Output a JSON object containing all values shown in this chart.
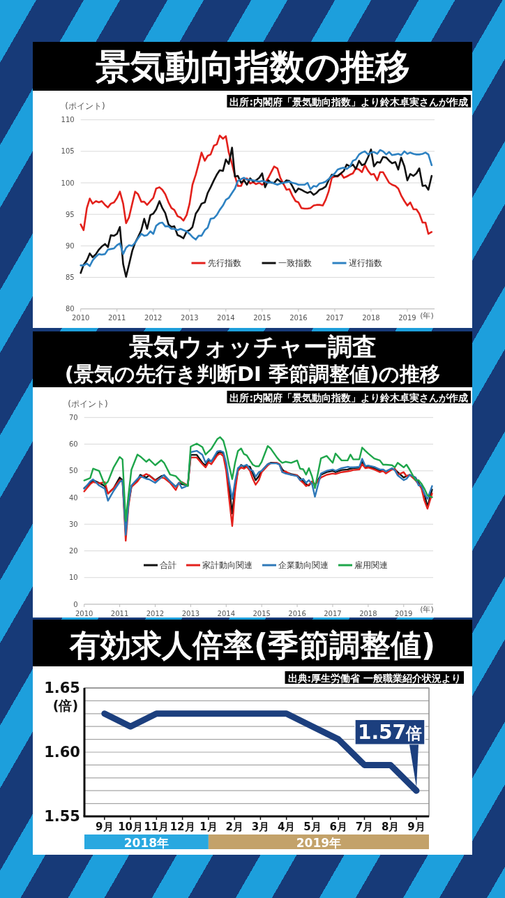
{
  "chart_data": [
    {
      "type": "line",
      "title": "景気動向指数の推移",
      "ylabel": "(ポイント)",
      "xlabel": "(年)",
      "annotations": [
        "出所:内閣府「景気動向指数」より鈴木卓実さんが作成"
      ],
      "xlim": [
        2010,
        2019.75
      ],
      "xticks": [
        2010,
        2011,
        2012,
        2013,
        2014,
        2015,
        2016,
        2017,
        2018,
        2019
      ],
      "ylim": [
        80,
        110
      ],
      "yticks": [
        80,
        85,
        90,
        95,
        100,
        105,
        110
      ],
      "grid": "y",
      "legend": "bottom",
      "x": [
        2010,
        2010.08,
        2010.17,
        2010.25,
        2010.33,
        2010.42,
        2010.5,
        2010.58,
        2010.67,
        2010.75,
        2010.83,
        2010.92,
        2011,
        2011.08,
        2011.17,
        2011.25,
        2011.33,
        2011.42,
        2011.5,
        2011.58,
        2011.67,
        2011.75,
        2011.83,
        2011.92,
        2012,
        2012.08,
        2012.17,
        2012.25,
        2012.33,
        2012.42,
        2012.5,
        2012.58,
        2012.67,
        2012.75,
        2012.83,
        2012.92,
        2013,
        2013.08,
        2013.17,
        2013.25,
        2013.33,
        2013.42,
        2013.5,
        2013.58,
        2013.67,
        2013.75,
        2013.83,
        2013.92,
        2014,
        2014.08,
        2014.17,
        2014.25,
        2014.33,
        2014.42,
        2014.5,
        2014.58,
        2014.67,
        2014.75,
        2014.83,
        2014.92,
        2015,
        2015.08,
        2015.17,
        2015.25,
        2015.33,
        2015.42,
        2015.5,
        2015.58,
        2015.67,
        2015.75,
        2015.83,
        2015.92,
        2016,
        2016.08,
        2016.17,
        2016.25,
        2016.33,
        2016.42,
        2016.5,
        2016.58,
        2016.67,
        2016.75,
        2016.83,
        2016.92,
        2017,
        2017.08,
        2017.17,
        2017.25,
        2017.33,
        2017.42,
        2017.5,
        2017.58,
        2017.67,
        2017.75,
        2017.83,
        2017.92,
        2018,
        2018.08,
        2018.17,
        2018.25,
        2018.33,
        2018.42,
        2018.5,
        2018.58,
        2018.67,
        2018.75,
        2018.83,
        2018.92,
        2019,
        2019.08,
        2019.17,
        2019.25,
        2019.33,
        2019.42,
        2019.5,
        2019.58,
        2019.67
      ],
      "series": [
        {
          "name": "先行指数",
          "color": "#e3211c",
          "values": [
            93.4,
            92.5,
            96.0,
            97.5,
            96.7,
            97.1,
            96.9,
            97.1,
            96.5,
            96.1,
            96.7,
            96.9,
            97.6,
            98.6,
            96.7,
            93.6,
            94.5,
            96.7,
            98.6,
            98.2,
            97.0,
            97.0,
            96.5,
            97.1,
            97.6,
            99.1,
            99.3,
            98.9,
            98.2,
            96.9,
            96.0,
            95.7,
            94.7,
            94.5,
            94.0,
            94.9,
            96.7,
            99.7,
            101.3,
            103.0,
            104.8,
            103.5,
            104.3,
            104.5,
            105.9,
            106.1,
            107.5,
            107.0,
            107.4,
            104.8,
            103.0,
            101.1,
            99.5,
            99.5,
            100.6,
            100.7,
            99.9,
            100.1,
            99.8,
            100.0,
            99.7,
            100.0,
            100.8,
            101.7,
            102.6,
            102.3,
            100.8,
            99.9,
            98.9,
            99.0,
            98.0,
            97.1,
            96.9,
            96.0,
            95.9,
            95.9,
            96.0,
            96.4,
            96.5,
            96.5,
            96.4,
            97.3,
            98.6,
            100.8,
            101.0,
            101.0,
            101.5,
            100.8,
            101.0,
            101.3,
            101.5,
            102.3,
            102.1,
            101.7,
            102.8,
            101.9,
            101.3,
            101.4,
            100.4,
            101.7,
            101.7,
            100.8,
            100.0,
            99.7,
            99.5,
            99.1,
            98.0,
            97.1,
            96.4,
            96.9,
            95.8,
            95.8,
            95.1,
            93.7,
            93.7,
            91.9,
            92.2
          ]
        },
        {
          "name": "一致指数",
          "color": "#111111",
          "values": [
            85.7,
            87.0,
            87.7,
            88.8,
            88.2,
            88.7,
            89.4,
            89.9,
            90.3,
            89.8,
            91.7,
            91.6,
            91.9,
            93.0,
            87.1,
            85.1,
            87.0,
            89.2,
            90.5,
            91.4,
            92.5,
            94.3,
            92.7,
            94.9,
            95.1,
            95.8,
            97.1,
            96.0,
            95.2,
            93.4,
            93.0,
            93.1,
            91.7,
            91.5,
            91.2,
            92.3,
            92.5,
            93.0,
            95.1,
            95.8,
            96.7,
            96.9,
            98.4,
            99.3,
            100.4,
            101.3,
            102.0,
            101.9,
            103.7,
            103.0,
            105.6,
            101.0,
            101.1,
            100.0,
            100.4,
            99.7,
            100.7,
            100.2,
            100.4,
            100.8,
            101.5,
            99.3,
            100.4,
            100.0,
            100.0,
            100.6,
            100.2,
            99.9,
            100.4,
            100.3,
            99.5,
            98.5,
            99.1,
            98.9,
            98.6,
            98.4,
            98.6,
            98.1,
            98.4,
            98.9,
            99.1,
            99.4,
            100.4,
            101.3,
            101.1,
            101.1,
            101.5,
            101.9,
            102.9,
            102.6,
            102.9,
            102.2,
            103.5,
            102.8,
            103.0,
            104.1,
            105.3,
            102.6,
            103.3,
            103.2,
            104.1,
            104.0,
            103.5,
            103.1,
            103.3,
            102.1,
            104.0,
            102.6,
            100.4,
            101.4,
            101.1,
            101.5,
            102.3,
            99.5,
            99.6,
            98.9,
            101.1
          ]
        },
        {
          "name": "遅行指数",
          "color": "#2e82c2",
          "values": [
            86.9,
            86.9,
            87.2,
            86.8,
            87.7,
            88.3,
            88.7,
            88.6,
            88.7,
            89.4,
            89.5,
            89.6,
            90.1,
            90.4,
            88.7,
            89.7,
            90.1,
            90.0,
            90.5,
            91.2,
            91.9,
            91.6,
            91.7,
            92.3,
            91.9,
            93.2,
            93.6,
            93.7,
            93.1,
            93.1,
            92.7,
            92.7,
            92.5,
            92.7,
            92.5,
            92.3,
            91.9,
            91.4,
            91.0,
            91.6,
            91.6,
            92.5,
            92.9,
            94.3,
            94.4,
            94.9,
            95.7,
            96.4,
            97.3,
            97.6,
            98.4,
            99.1,
            100.3,
            100.6,
            100.8,
            100.5,
            100.5,
            100.4,
            100.3,
            100.2,
            100.3,
            100.2,
            100.0,
            100.1,
            99.9,
            99.7,
            99.9,
            100.0,
            100.1,
            100.2,
            100.0,
            99.9,
            99.7,
            99.7,
            99.7,
            100.0,
            99.0,
            99.5,
            99.4,
            99.9,
            100.0,
            100.2,
            100.6,
            101.1,
            101.5,
            102.1,
            102.3,
            102.4,
            102.2,
            102.6,
            103.5,
            103.7,
            104.5,
            104.8,
            105.0,
            104.5,
            104.8,
            104.9,
            104.6,
            105.2,
            105.0,
            104.5,
            104.9,
            104.4,
            104.5,
            104.6,
            104.4,
            105.0,
            104.6,
            104.8,
            104.6,
            104.5,
            104.5,
            104.6,
            104.8,
            104.5,
            102.8
          ]
        }
      ]
    },
    {
      "type": "line",
      "title": "景気ウォッチャー調査",
      "subtitle": "(景気の先行き判断DI 季節調整値)の推移",
      "ylabel": "(ポイント)",
      "xlabel": "(年)",
      "annotations": [
        "出所:内閣府「景気動向指数」より鈴木卓実さんが作成"
      ],
      "xlim": [
        2010,
        2019.83
      ],
      "xticks": [
        2010,
        2011,
        2012,
        2013,
        2014,
        2015,
        2016,
        2017,
        2018,
        2019
      ],
      "ylim": [
        0,
        70
      ],
      "yticks": [
        0,
        10,
        20,
        30,
        40,
        50,
        60,
        70
      ],
      "grid": "y",
      "legend": "bottom",
      "x": [
        2010,
        2010.17,
        2010.25,
        2010.42,
        2010.58,
        2010.67,
        2010.83,
        2011,
        2011.08,
        2011.17,
        2011.25,
        2011.33,
        2011.5,
        2011.58,
        2011.75,
        2011.83,
        2012,
        2012.17,
        2012.25,
        2012.42,
        2012.58,
        2012.67,
        2012.75,
        2012.92,
        2013,
        2013.17,
        2013.33,
        2013.42,
        2013.5,
        2013.58,
        2013.75,
        2013.83,
        2013.92,
        2014,
        2014.08,
        2014.17,
        2014.25,
        2014.33,
        2014.42,
        2014.5,
        2014.58,
        2014.67,
        2014.75,
        2014.83,
        2014.92,
        2015,
        2015.17,
        2015.25,
        2015.42,
        2015.5,
        2015.58,
        2015.67,
        2015.83,
        2016,
        2016.08,
        2016.17,
        2016.25,
        2016.33,
        2016.42,
        2016.5,
        2016.67,
        2016.83,
        2017,
        2017.08,
        2017.25,
        2017.42,
        2017.5,
        2017.58,
        2017.75,
        2017.83,
        2017.92,
        2018,
        2018.17,
        2018.33,
        2018.42,
        2018.5,
        2018.67,
        2018.75,
        2018.83,
        2019,
        2019.08,
        2019.17,
        2019.33,
        2019.42,
        2019.5,
        2019.58,
        2019.67,
        2019.8
      ],
      "series": [
        {
          "name": "合計",
          "color": "#111111",
          "values": [
            43.5,
            45.5,
            46.5,
            45.5,
            44.3,
            41.5,
            43.5,
            47.5,
            46.5,
            27.0,
            38.0,
            44.0,
            46.5,
            48.5,
            47.5,
            48.3,
            46.5,
            48.0,
            48.3,
            46.0,
            44.0,
            45.5,
            45.0,
            44.5,
            56.0,
            56.0,
            53.0,
            52.0,
            54.0,
            53.5,
            56.5,
            57.3,
            56.5,
            52.0,
            44.0,
            34.0,
            44.0,
            50.0,
            52.2,
            51.5,
            51.7,
            51.5,
            49.0,
            46.5,
            48.0,
            50.0,
            52.5,
            53.0,
            53.0,
            52.5,
            50.5,
            49.5,
            48.8,
            48.3,
            47.3,
            46.0,
            45.0,
            44.5,
            46.0,
            44.5,
            48.5,
            49.5,
            50.0,
            49.5,
            50.3,
            50.5,
            50.8,
            51.0,
            51.2,
            53.5,
            51.5,
            51.5,
            51.0,
            50.0,
            50.0,
            49.8,
            50.8,
            50.5,
            49.5,
            47.5,
            48.0,
            48.5,
            47.5,
            45.5,
            43.5,
            41.5,
            36.5,
            43.0
          ]
        },
        {
          "name": "家計動向関連",
          "color": "#e3211c",
          "values": [
            42.3,
            45.0,
            45.8,
            45.3,
            45.8,
            41.5,
            43.5,
            46.5,
            46.0,
            23.8,
            37.0,
            44.0,
            46.0,
            47.5,
            48.8,
            48.3,
            46.3,
            47.5,
            47.3,
            45.5,
            42.8,
            45.5,
            45.8,
            44.5,
            55.0,
            55.0,
            52.5,
            51.3,
            53.2,
            52.5,
            55.8,
            56.5,
            55.5,
            50.0,
            40.0,
            29.3,
            42.0,
            50.0,
            51.3,
            50.8,
            51.5,
            50.0,
            47.0,
            44.8,
            46.5,
            49.5,
            52.0,
            52.8,
            53.0,
            52.5,
            49.5,
            49.8,
            48.5,
            48.3,
            46.5,
            45.5,
            44.3,
            44.8,
            46.0,
            45.0,
            47.5,
            48.5,
            49.0,
            48.8,
            49.5,
            49.8,
            50.0,
            50.3,
            50.5,
            52.5,
            51.0,
            51.2,
            50.5,
            49.5,
            50.0,
            49.0,
            50.5,
            50.8,
            48.5,
            49.5,
            48.0,
            48.5,
            46.5,
            45.0,
            43.5,
            39.0,
            35.8,
            41.5
          ]
        },
        {
          "name": "企業動向関連",
          "color": "#2e78b8",
          "values": [
            43.3,
            46.0,
            46.8,
            44.5,
            43.3,
            38.8,
            42.5,
            45.8,
            46.5,
            26.0,
            38.0,
            44.5,
            47.0,
            48.0,
            47.0,
            46.8,
            45.5,
            47.5,
            48.5,
            46.0,
            44.0,
            45.5,
            43.5,
            44.5,
            57.0,
            57.5,
            56.0,
            53.0,
            54.5,
            53.5,
            57.3,
            57.5,
            57.0,
            53.0,
            46.0,
            39.5,
            46.0,
            51.0,
            52.0,
            51.8,
            52.3,
            50.5,
            50.0,
            47.8,
            49.5,
            50.0,
            52.5,
            52.8,
            52.8,
            52.3,
            49.5,
            49.0,
            48.5,
            48.0,
            46.5,
            47.0,
            45.5,
            46.5,
            45.0,
            40.3,
            49.0,
            50.0,
            50.5,
            50.0,
            51.0,
            51.5,
            51.3,
            51.3,
            51.5,
            54.5,
            51.8,
            52.0,
            51.5,
            50.5,
            50.5,
            49.8,
            51.0,
            50.2,
            48.3,
            46.5,
            47.0,
            48.5,
            47.5,
            44.5,
            44.5,
            41.5,
            39.5,
            44.3
          ]
        },
        {
          "name": "雇用関連",
          "color": "#1fa64b",
          "values": [
            46.4,
            47.3,
            50.8,
            50.0,
            44.7,
            46.0,
            51.3,
            55.2,
            54.3,
            31.2,
            41.2,
            50.4,
            56.1,
            55.4,
            53.4,
            54.3,
            52.1,
            54.0,
            53.0,
            48.6,
            48.0,
            46.7,
            45.6,
            44.3,
            59.1,
            60.2,
            58.9,
            56.1,
            57.2,
            58.2,
            61.9,
            62.6,
            61.3,
            57.4,
            52.1,
            46.9,
            53.0,
            57.4,
            58.4,
            56.3,
            55.8,
            53.9,
            52.3,
            51.7,
            51.7,
            53.4,
            59.3,
            58.4,
            55.2,
            53.9,
            53.0,
            53.4,
            53.0,
            53.9,
            50.8,
            50.6,
            48.6,
            51.0,
            47.8,
            43.5,
            54.7,
            55.6,
            53.0,
            56.5,
            53.9,
            53.9,
            56.1,
            54.3,
            54.3,
            58.7,
            57.5,
            56.5,
            54.6,
            53.9,
            52.3,
            52.3,
            52.1,
            51.3,
            53.0,
            51.3,
            52.3,
            50.4,
            46.5,
            46.5,
            45.2,
            43.4,
            40.8,
            40.1
          ]
        }
      ]
    },
    {
      "type": "line",
      "title": "有効求人倍率(季節調整値)",
      "ylabel": "(倍)",
      "annotations": [
        "出典:厚生労働省 一般職業紹介状況より",
        "2018年",
        "2019年"
      ],
      "categories": [
        "9月",
        "10月",
        "11月",
        "12月",
        "1月",
        "2月",
        "3月",
        "4月",
        "5月",
        "6月",
        "7月",
        "8月",
        "9月"
      ],
      "values": [
        1.63,
        1.62,
        1.63,
        1.63,
        1.63,
        1.63,
        1.63,
        1.63,
        1.62,
        1.61,
        1.59,
        1.59,
        1.57
      ],
      "value_labels": [
        null,
        null,
        null,
        null,
        null,
        null,
        null,
        null,
        null,
        null,
        null,
        null,
        "1.57倍"
      ],
      "color": "#1c3f7e",
      "ylim": [
        1.55,
        1.65
      ],
      "yticks": [
        1.55,
        {
          "value": 1.56,
          "label": null
        },
        {
          "value": 1.57,
          "label": null
        },
        {
          "value": 1.58,
          "label": null
        },
        {
          "value": 1.59,
          "label": null
        },
        {
          "value": 1.6,
          "label": "1.60"
        },
        {
          "value": 1.61,
          "label": null
        },
        {
          "value": 1.62,
          "label": null
        },
        {
          "value": 1.63,
          "label": null
        },
        {
          "value": 1.64,
          "label": null
        },
        1.65
      ],
      "grid": "y"
    }
  ]
}
